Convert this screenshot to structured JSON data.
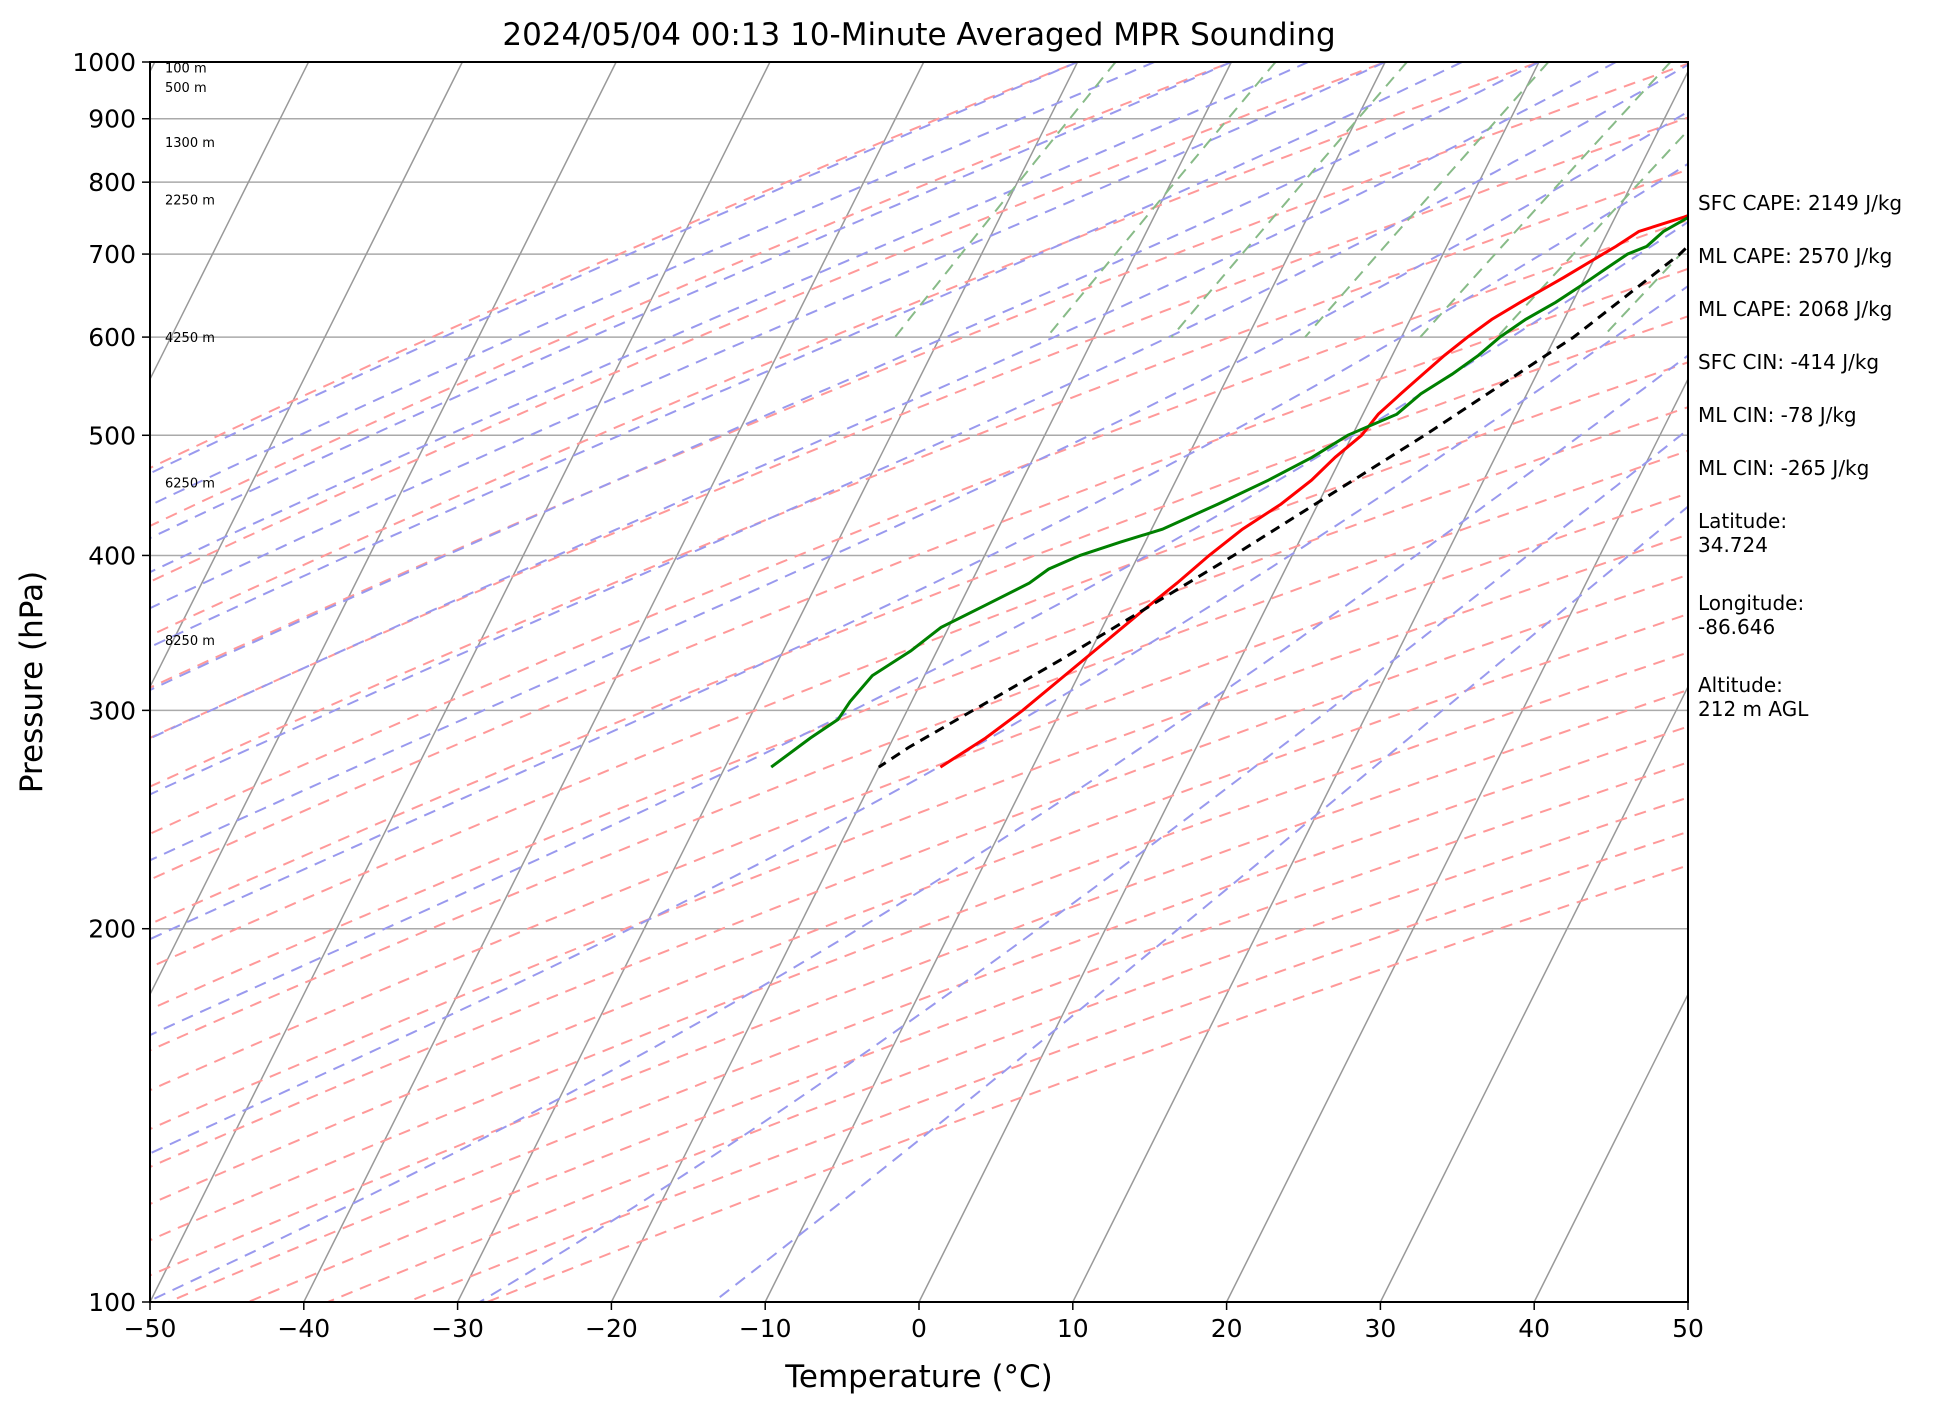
{
  "chart_data": {
    "type": "line",
    "title": "2024/05/04 00:13 10-Minute Averaged MPR Sounding",
    "xlabel": "Temperature (°C)",
    "ylabel": "Pressure (hPa)",
    "xlim": [
      -50,
      50
    ],
    "ylim": [
      1000,
      100
    ],
    "y_scale": "log",
    "x_ticks": [
      "−50",
      "−40",
      "−30",
      "−20",
      "−10",
      "0",
      "10",
      "20",
      "30",
      "40",
      "50"
    ],
    "y_ticks": [
      "100",
      "200",
      "300",
      "400",
      "500",
      "600",
      "700",
      "800",
      "900",
      "1000"
    ],
    "grid": "horizontal at labeled pressures; skewed isotherms",
    "height_labels": [
      {
        "p": 990,
        "text": "100 m"
      },
      {
        "p": 955,
        "text": "500 m"
      },
      {
        "p": 862,
        "text": "1300 m"
      },
      {
        "p": 775,
        "text": "2250 m"
      },
      {
        "p": 600,
        "text": "4250 m"
      },
      {
        "p": 458,
        "text": "6250 m"
      },
      {
        "p": 342,
        "text": "8250 m"
      }
    ],
    "series": [
      {
        "role": "temperature",
        "color": "#ff0000",
        "points": [
          [
            990,
            22.5
          ],
          [
            980,
            23.5
          ],
          [
            970,
            27
          ],
          [
            960,
            29
          ],
          [
            945,
            30
          ],
          [
            930,
            29.8
          ],
          [
            910,
            28.5
          ],
          [
            895,
            27
          ],
          [
            880,
            25.5
          ],
          [
            865,
            24
          ],
          [
            850,
            23
          ],
          [
            835,
            21.5
          ],
          [
            820,
            20.3
          ],
          [
            800,
            19
          ],
          [
            790,
            18
          ],
          [
            770,
            16.5
          ],
          [
            750,
            14.5
          ],
          [
            730,
            12
          ],
          [
            710,
            11
          ],
          [
            700,
            10.4
          ],
          [
            670,
            8.6
          ],
          [
            640,
            6.6
          ],
          [
            620,
            5.3
          ],
          [
            600,
            4.3
          ],
          [
            580,
            3.4
          ],
          [
            560,
            2.6
          ],
          [
            540,
            1.8
          ],
          [
            520,
            1.0
          ],
          [
            500,
            0.6
          ],
          [
            480,
            -0.4
          ],
          [
            460,
            -1.2
          ],
          [
            440,
            -2.4
          ],
          [
            420,
            -4.1
          ],
          [
            400,
            -5.4
          ],
          [
            380,
            -6.6
          ],
          [
            360,
            -8.0
          ],
          [
            340,
            -9.4
          ],
          [
            320,
            -10.9
          ],
          [
            300,
            -12.5
          ],
          [
            285,
            -14.0
          ],
          [
            270,
            -16.0
          ]
        ]
      },
      {
        "role": "dewpoint",
        "color": "#008000",
        "points": [
          [
            995,
            20.2
          ],
          [
            990,
            20.0
          ],
          [
            980,
            20.3
          ],
          [
            970,
            19.8
          ],
          [
            955,
            19.0
          ],
          [
            940,
            17.6
          ],
          [
            925,
            16.9
          ],
          [
            910,
            17.5
          ],
          [
            895,
            17.8
          ],
          [
            880,
            17.4
          ],
          [
            865,
            17.9
          ],
          [
            850,
            18.0
          ],
          [
            835,
            17.2
          ],
          [
            820,
            16.8
          ],
          [
            800,
            17.7
          ],
          [
            785,
            17.3
          ],
          [
            770,
            16.0
          ],
          [
            750,
            14.8
          ],
          [
            730,
            13.6
          ],
          [
            710,
            13.0
          ],
          [
            700,
            12.0
          ],
          [
            680,
            11.0
          ],
          [
            660,
            10.0
          ],
          [
            640,
            8.9
          ],
          [
            620,
            7.5
          ],
          [
            600,
            6.4
          ],
          [
            580,
            5.6
          ],
          [
            560,
            4.5
          ],
          [
            540,
            3.1
          ],
          [
            520,
            2.2
          ],
          [
            500,
            -0.3
          ],
          [
            480,
            -1.9
          ],
          [
            460,
            -4.0
          ],
          [
            440,
            -6.5
          ],
          [
            420,
            -9.3
          ],
          [
            410,
            -11.6
          ],
          [
            400,
            -13.8
          ],
          [
            390,
            -15.4
          ],
          [
            380,
            -16.2
          ],
          [
            365,
            -18.3
          ],
          [
            350,
            -20.5
          ],
          [
            335,
            -21.7
          ],
          [
            320,
            -23.4
          ],
          [
            305,
            -24.0
          ],
          [
            295,
            -24.2
          ],
          [
            285,
            -25.4
          ],
          [
            270,
            -27.0
          ]
        ]
      },
      {
        "role": "parcel",
        "color": "#000000",
        "points": [
          [
            990,
            22.6
          ],
          [
            975,
            21.6
          ],
          [
            955,
            20.3
          ],
          [
            900,
            19.4
          ],
          [
            850,
            18.8
          ],
          [
            800,
            17.9
          ],
          [
            700,
            15.4
          ],
          [
            600,
            11.2
          ],
          [
            500,
            4.7
          ],
          [
            400,
            -3.8
          ],
          [
            330,
            -11.6
          ],
          [
            280,
            -18.7
          ],
          [
            270,
            -20.0
          ]
        ]
      }
    ]
  },
  "side_text": [
    {
      "text": "SFC CAPE: 2149 J/kg"
    },
    {
      "text": "ML CAPE: 2570 J/kg"
    },
    {
      "text": "ML CAPE: 2068 J/kg"
    },
    {
      "text": "SFC CIN: -414 J/kg"
    },
    {
      "text": "ML CIN: -78 J/kg"
    },
    {
      "text": "ML CIN: -265 J/kg"
    },
    {
      "text": "Latitude:",
      "text2": "34.724"
    },
    {
      "text": "Longitude:",
      "text2": "-86.646"
    },
    {
      "text": "Altitude:",
      "text2": "212 m AGL"
    }
  ],
  "colors": {
    "dry_adiabat": "#ff9999",
    "moist_adiabat": "#9999ee",
    "mixing_ratio": "#88bb88",
    "isotherm": "#999999",
    "isobar": "#aaaaaa"
  }
}
